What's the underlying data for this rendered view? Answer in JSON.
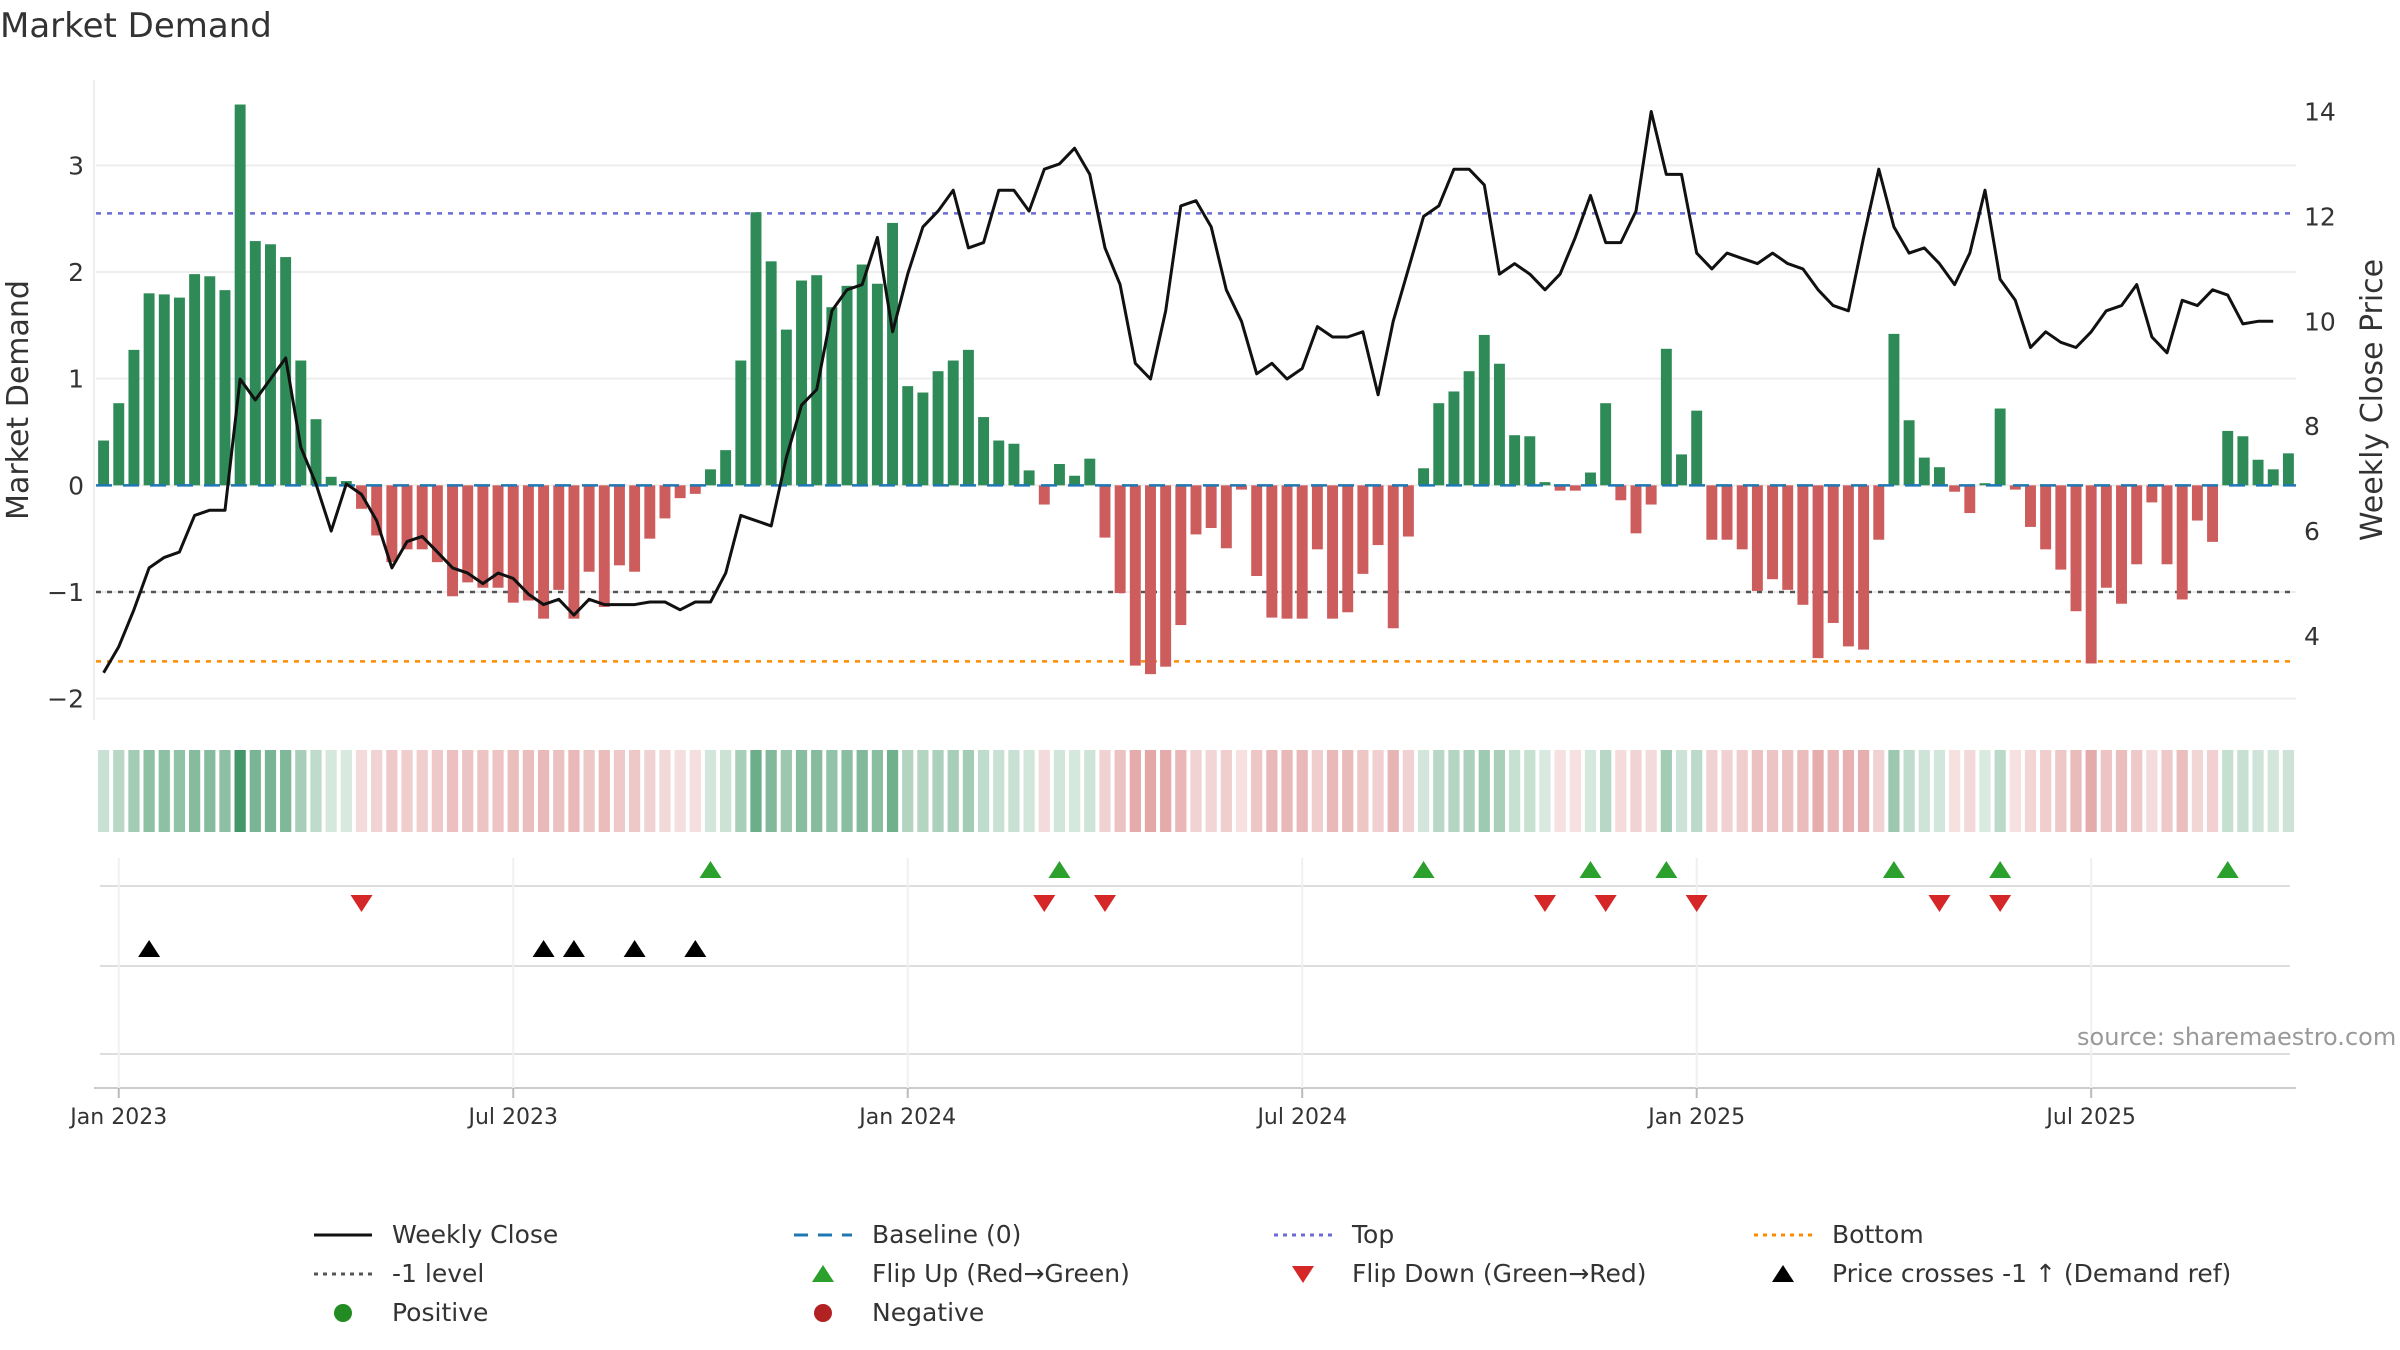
{
  "chart_data": {
    "type": "bar",
    "title": "Market Demand",
    "source": "source: sharemaestro.com",
    "ylabel": "Market Demand",
    "y2label": "Weekly Close Price",
    "ylim": [
      -2.2,
      3.8
    ],
    "y2lim": [
      2.4,
      14.6
    ],
    "yticks": [
      -2,
      -1,
      0,
      1,
      2,
      3
    ],
    "ytick_labels": [
      "−2",
      "−1",
      "0",
      "1",
      "2",
      "3"
    ],
    "y2ticks": [
      4,
      6,
      8,
      10,
      12,
      14
    ],
    "xticks": [
      {
        "week": 1,
        "label": "Jan 2023"
      },
      {
        "week": 27,
        "label": "Jul 2023"
      },
      {
        "week": 53,
        "label": "Jan 2024"
      },
      {
        "week": 79,
        "label": "Jul 2024"
      },
      {
        "week": 105,
        "label": "Jan 2025"
      },
      {
        "week": 131,
        "label": "Jul 2025"
      }
    ],
    "reference_lines": {
      "top": 2.55,
      "minus_one": -1,
      "bottom": -1.65,
      "baseline": 0
    },
    "series": [
      {
        "name": "Market Demand",
        "values": [
          0.42,
          0.77,
          1.27,
          1.8,
          1.79,
          1.76,
          1.98,
          1.96,
          1.83,
          3.57,
          2.29,
          2.26,
          2.14,
          1.17,
          0.62,
          0.08,
          0.04,
          -0.22,
          -0.47,
          -0.72,
          -0.6,
          -0.6,
          -0.72,
          -1.04,
          -0.91,
          -0.96,
          -0.96,
          -1.1,
          -1.08,
          -1.25,
          -0.98,
          -1.25,
          -0.81,
          -1.14,
          -0.75,
          -0.81,
          -0.5,
          -0.31,
          -0.12,
          -0.08,
          0.15,
          0.33,
          1.17,
          2.56,
          2.1,
          1.46,
          1.92,
          1.97,
          1.67,
          1.87,
          2.07,
          1.89,
          2.46,
          0.93,
          0.87,
          1.07,
          1.17,
          1.27,
          0.64,
          0.42,
          0.39,
          0.14,
          -0.18,
          0.2,
          0.09,
          0.25,
          -0.49,
          -1.01,
          -1.69,
          -1.77,
          -1.7,
          -1.31,
          -0.46,
          -0.4,
          -0.59,
          -0.04,
          -0.85,
          -1.24,
          -1.25,
          -1.25,
          -0.6,
          -1.25,
          -1.19,
          -0.83,
          -0.56,
          -1.34,
          -0.48,
          0.16,
          0.77,
          0.88,
          1.07,
          1.41,
          1.14,
          0.47,
          0.46,
          0.03,
          -0.05,
          -0.05,
          0.12,
          0.77,
          -0.14,
          -0.45,
          -0.18,
          1.28,
          0.29,
          0.7,
          -0.51,
          -0.51,
          -0.6,
          -0.99,
          -0.88,
          -0.98,
          -1.12,
          -1.62,
          -1.29,
          -1.51,
          -1.54,
          -0.51,
          1.42,
          0.61,
          0.26,
          0.17,
          -0.06,
          -0.26,
          0.02,
          0.72,
          -0.04,
          -0.39,
          -0.6,
          -0.79,
          -1.18,
          -1.67,
          -0.96,
          -1.11,
          -0.74,
          -0.16,
          -0.74,
          -1.07,
          -0.33,
          -0.53,
          0.51,
          0.46,
          0.24,
          0.15,
          0.3
        ]
      },
      {
        "name": "Weekly Close",
        "values": [
          3.3,
          3.8,
          4.5,
          5.3,
          5.5,
          5.6,
          6.3,
          6.4,
          6.4,
          8.9,
          8.5,
          8.9,
          9.3,
          7.6,
          6.9,
          6.0,
          6.9,
          6.7,
          6.2,
          5.3,
          5.8,
          5.9,
          5.6,
          5.3,
          5.2,
          5.0,
          5.2,
          5.1,
          4.8,
          4.6,
          4.7,
          4.4,
          4.7,
          4.6,
          4.6,
          4.6,
          4.65,
          4.65,
          4.5,
          4.65,
          4.65,
          5.2,
          6.3,
          6.2,
          6.1,
          7.4,
          8.4,
          8.7,
          10.2,
          10.6,
          10.7,
          11.6,
          9.8,
          10.9,
          11.8,
          12.1,
          12.5,
          11.4,
          11.5,
          12.5,
          12.5,
          12.1,
          12.9,
          13.0,
          13.3,
          12.8,
          11.4,
          10.7,
          9.2,
          8.9,
          10.2,
          12.2,
          12.3,
          11.8,
          10.6,
          10.0,
          9.0,
          9.2,
          8.9,
          9.1,
          9.9,
          9.7,
          9.7,
          9.8,
          8.6,
          10.0,
          11.0,
          12.0,
          12.2,
          12.9,
          12.9,
          12.6,
          10.9,
          11.1,
          10.9,
          10.6,
          10.9,
          11.6,
          12.4,
          11.5,
          11.5,
          12.1,
          14.0,
          12.8,
          12.8,
          11.3,
          11.0,
          11.3,
          11.2,
          11.1,
          11.3,
          11.1,
          11.0,
          10.6,
          10.3,
          10.2,
          11.6,
          12.9,
          11.8,
          11.3,
          11.4,
          11.1,
          10.7,
          11.3,
          12.5,
          10.8,
          10.4,
          9.5,
          9.8,
          9.6,
          9.5,
          9.8,
          10.2,
          10.3,
          10.7,
          9.7,
          9.4,
          10.4,
          10.3,
          10.6,
          10.5,
          9.95,
          10.0,
          10.0
        ]
      }
    ],
    "flip_up_weeks": [
      40,
      63,
      87,
      98,
      103,
      118,
      125,
      140
    ],
    "flip_down_weeks": [
      17,
      62,
      66,
      95,
      99,
      105,
      121,
      125
    ],
    "price_cross_weeks": [
      3,
      29,
      31,
      35,
      39
    ],
    "legend": [
      {
        "key": "close",
        "label": "Weekly Close"
      },
      {
        "key": "baseline",
        "label": "Baseline (0)"
      },
      {
        "key": "top",
        "label": "Top"
      },
      {
        "key": "bottom",
        "label": "Bottom"
      },
      {
        "key": "minus1",
        "label": "-1 level"
      },
      {
        "key": "flipup",
        "label": "Flip Up (Red→Green)"
      },
      {
        "key": "flipdown",
        "label": "Flip Down (Green→Red)"
      },
      {
        "key": "cross",
        "label": "Price crosses -1 ↑ (Demand ref)"
      },
      {
        "key": "positive",
        "label": "Positive"
      },
      {
        "key": "negative",
        "label": "Negative"
      }
    ],
    "colors": {
      "positive": "#2e8b57",
      "negative": "#cd5c5c",
      "close": "#111111",
      "baseline": "#1f77b4",
      "top": "#6b6bd6",
      "minus1": "#555555",
      "bottom": "#ff8c00",
      "flipup": "#2ca02c",
      "flipdown": "#d62728",
      "cross": "#000000",
      "pos_dot": "#228b22",
      "neg_dot": "#b22222"
    }
  }
}
